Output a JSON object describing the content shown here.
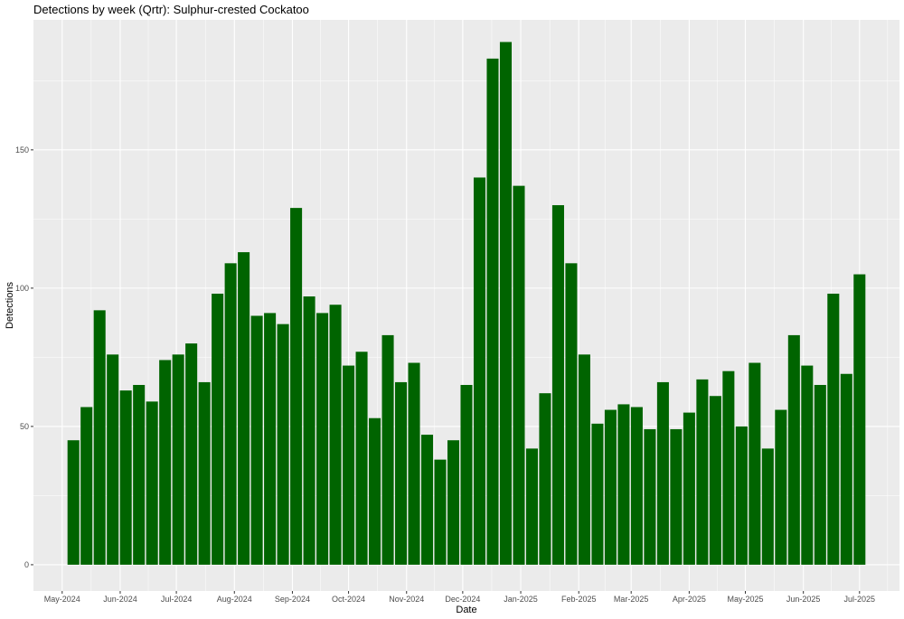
{
  "chart_data": {
    "type": "bar",
    "title": "Detections by week (Qrtr): Sulphur-crested Cockatoo",
    "xlabel": "Date",
    "ylabel": "Detections",
    "ylim": [
      -9.5,
      197
    ],
    "y_ticks": [
      0,
      50,
      100,
      150
    ],
    "x_ticks": [
      "May-2024",
      "Jun-2024",
      "Jul-2024",
      "Aug-2024",
      "Sep-2024",
      "Oct-2024",
      "Nov-2024",
      "Dec-2024",
      "Jan-2025",
      "Feb-2025",
      "Mar-2025",
      "Apr-2025",
      "May-2025",
      "Jun-2025",
      "Jul-2025"
    ],
    "grid": true,
    "bar_color": "#006400",
    "panel_color": "#EBEBEB",
    "values": [
      45,
      57,
      92,
      76,
      63,
      65,
      59,
      74,
      76,
      80,
      66,
      98,
      109,
      113,
      90,
      91,
      87,
      129,
      97,
      91,
      94,
      72,
      77,
      53,
      83,
      66,
      73,
      47,
      38,
      45,
      65,
      140,
      183,
      189,
      137,
      42,
      62,
      130,
      109,
      76,
      51,
      56,
      58,
      57,
      49,
      66,
      49,
      55,
      67,
      61,
      70,
      50,
      73,
      42,
      56,
      83,
      72,
      65,
      98,
      69,
      105
    ]
  }
}
